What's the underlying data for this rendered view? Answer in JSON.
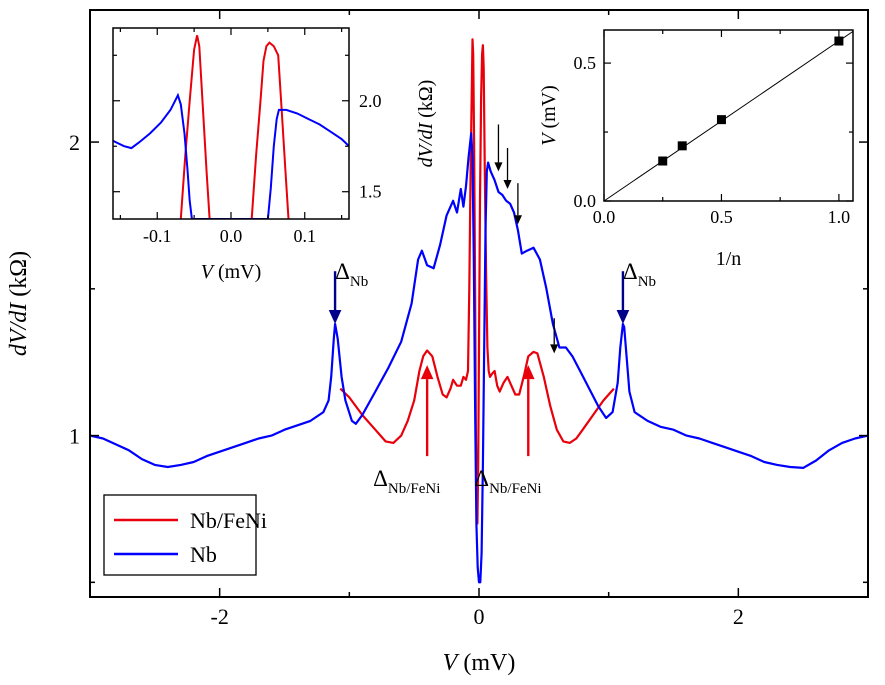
{
  "chart_data": [
    {
      "type": "line",
      "xlabel": "V (mV)",
      "ylabel": "dV/dI (kΩ)",
      "xlim": [
        -3.0,
        3.0
      ],
      "ylim": [
        0.45,
        2.45
      ],
      "xticks": [
        -2,
        0,
        2
      ],
      "xtick_labels": [
        "-2",
        "0",
        "2"
      ],
      "yticks": [
        1,
        2
      ],
      "ytick_labels": [
        "1",
        "2"
      ],
      "legend_placement": "bottom-left",
      "series": [
        {
          "name": "Nb/FeNi",
          "color": "#e8000b",
          "points": [
            [
              -1.07,
              1.16
            ],
            [
              -1.0,
              1.13
            ],
            [
              -0.9,
              1.07
            ],
            [
              -0.8,
              1.02
            ],
            [
              -0.72,
              0.98
            ],
            [
              -0.66,
              0.975
            ],
            [
              -0.6,
              1.0
            ],
            [
              -0.55,
              1.05
            ],
            [
              -0.5,
              1.12
            ],
            [
              -0.46,
              1.22
            ],
            [
              -0.43,
              1.27
            ],
            [
              -0.4,
              1.29
            ],
            [
              -0.36,
              1.27
            ],
            [
              -0.32,
              1.2
            ],
            [
              -0.28,
              1.14
            ],
            [
              -0.25,
              1.13
            ],
            [
              -0.22,
              1.16
            ],
            [
              -0.2,
              1.19
            ],
            [
              -0.17,
              1.17
            ],
            [
              -0.14,
              1.17
            ],
            [
              -0.12,
              1.2
            ],
            [
              -0.1,
              1.19
            ],
            [
              -0.085,
              1.22
            ],
            [
              -0.075,
              1.5
            ],
            [
              -0.065,
              1.9
            ],
            [
              -0.055,
              2.2
            ],
            [
              -0.05,
              2.35
            ],
            [
              -0.045,
              2.3
            ],
            [
              -0.038,
              2.0
            ],
            [
              -0.03,
              1.5
            ],
            [
              -0.024,
              1.0
            ],
            [
              -0.018,
              0.75
            ],
            [
              -0.012,
              0.7
            ],
            [
              -0.006,
              0.9
            ],
            [
              0.0,
              1.3
            ],
            [
              0.008,
              1.8
            ],
            [
              0.016,
              2.15
            ],
            [
              0.024,
              2.3
            ],
            [
              0.03,
              2.33
            ],
            [
              0.036,
              2.25
            ],
            [
              0.045,
              1.9
            ],
            [
              0.055,
              1.55
            ],
            [
              0.065,
              1.3
            ],
            [
              0.075,
              1.22
            ],
            [
              0.085,
              1.2
            ],
            [
              0.1,
              1.21
            ],
            [
              0.12,
              1.22
            ],
            [
              0.14,
              1.17
            ],
            [
              0.16,
              1.15
            ],
            [
              0.19,
              1.18
            ],
            [
              0.22,
              1.2
            ],
            [
              0.25,
              1.17
            ],
            [
              0.28,
              1.14
            ],
            [
              0.31,
              1.14
            ],
            [
              0.35,
              1.21
            ],
            [
              0.38,
              1.27
            ],
            [
              0.42,
              1.285
            ],
            [
              0.45,
              1.28
            ],
            [
              0.5,
              1.2
            ],
            [
              0.55,
              1.1
            ],
            [
              0.6,
              1.02
            ],
            [
              0.65,
              0.98
            ],
            [
              0.7,
              0.975
            ],
            [
              0.75,
              0.99
            ],
            [
              0.8,
              1.02
            ],
            [
              0.88,
              1.07
            ],
            [
              0.96,
              1.12
            ],
            [
              1.04,
              1.16
            ]
          ]
        },
        {
          "name": "Nb",
          "color": "#0000ff",
          "points": [
            [
              -3.0,
              1.0
            ],
            [
              -2.9,
              0.99
            ],
            [
              -2.8,
              0.97
            ],
            [
              -2.7,
              0.95
            ],
            [
              -2.6,
              0.92
            ],
            [
              -2.5,
              0.9
            ],
            [
              -2.4,
              0.893
            ],
            [
              -2.3,
              0.9
            ],
            [
              -2.2,
              0.91
            ],
            [
              -2.1,
              0.93
            ],
            [
              -2.0,
              0.945
            ],
            [
              -1.9,
              0.96
            ],
            [
              -1.8,
              0.975
            ],
            [
              -1.7,
              0.99
            ],
            [
              -1.6,
              1.0
            ],
            [
              -1.5,
              1.02
            ],
            [
              -1.4,
              1.035
            ],
            [
              -1.3,
              1.05
            ],
            [
              -1.2,
              1.08
            ],
            [
              -1.16,
              1.12
            ],
            [
              -1.14,
              1.2
            ],
            [
              -1.12,
              1.33
            ],
            [
              -1.11,
              1.38
            ],
            [
              -1.09,
              1.33
            ],
            [
              -1.06,
              1.2
            ],
            [
              -1.03,
              1.12
            ],
            [
              -0.98,
              1.05
            ],
            [
              -0.95,
              1.04
            ],
            [
              -0.9,
              1.07
            ],
            [
              -0.8,
              1.15
            ],
            [
              -0.7,
              1.23
            ],
            [
              -0.6,
              1.32
            ],
            [
              -0.52,
              1.45
            ],
            [
              -0.47,
              1.6
            ],
            [
              -0.44,
              1.63
            ],
            [
              -0.4,
              1.58
            ],
            [
              -0.35,
              1.57
            ],
            [
              -0.3,
              1.65
            ],
            [
              -0.25,
              1.75
            ],
            [
              -0.2,
              1.8
            ],
            [
              -0.17,
              1.76
            ],
            [
              -0.14,
              1.84
            ],
            [
              -0.12,
              1.78
            ],
            [
              -0.1,
              1.85
            ],
            [
              -0.08,
              1.95
            ],
            [
              -0.06,
              2.03
            ],
            [
              -0.05,
              1.95
            ],
            [
              -0.04,
              1.6
            ],
            [
              -0.03,
              1.1
            ],
            [
              -0.02,
              0.7
            ],
            [
              -0.01,
              0.55
            ],
            [
              0.0,
              0.5
            ],
            [
              0.01,
              0.5
            ],
            [
              0.02,
              0.6
            ],
            [
              0.03,
              0.9
            ],
            [
              0.04,
              1.3
            ],
            [
              0.05,
              1.7
            ],
            [
              0.06,
              1.9
            ],
            [
              0.07,
              1.93
            ],
            [
              0.09,
              1.9
            ],
            [
              0.12,
              1.87
            ],
            [
              0.15,
              1.83
            ],
            [
              0.18,
              1.82
            ],
            [
              0.21,
              1.8
            ],
            [
              0.24,
              1.79
            ],
            [
              0.27,
              1.76
            ],
            [
              0.3,
              1.7
            ],
            [
              0.33,
              1.62
            ],
            [
              0.37,
              1.63
            ],
            [
              0.42,
              1.64
            ],
            [
              0.47,
              1.6
            ],
            [
              0.52,
              1.5
            ],
            [
              0.57,
              1.38
            ],
            [
              0.62,
              1.3
            ],
            [
              0.67,
              1.3
            ],
            [
              0.72,
              1.27
            ],
            [
              0.78,
              1.22
            ],
            [
              0.85,
              1.16
            ],
            [
              0.92,
              1.1
            ],
            [
              0.98,
              1.06
            ],
            [
              1.03,
              1.08
            ],
            [
              1.07,
              1.18
            ],
            [
              1.09,
              1.3
            ],
            [
              1.11,
              1.38
            ],
            [
              1.12,
              1.37
            ],
            [
              1.14,
              1.26
            ],
            [
              1.16,
              1.15
            ],
            [
              1.2,
              1.08
            ],
            [
              1.3,
              1.05
            ],
            [
              1.4,
              1.03
            ],
            [
              1.5,
              1.02
            ],
            [
              1.6,
              1.0
            ],
            [
              1.7,
              0.99
            ],
            [
              1.8,
              0.975
            ],
            [
              1.9,
              0.96
            ],
            [
              2.0,
              0.945
            ],
            [
              2.1,
              0.93
            ],
            [
              2.2,
              0.91
            ],
            [
              2.3,
              0.9
            ],
            [
              2.4,
              0.893
            ],
            [
              2.5,
              0.89
            ],
            [
              2.6,
              0.915
            ],
            [
              2.7,
              0.95
            ],
            [
              2.8,
              0.975
            ],
            [
              2.9,
              0.99
            ],
            [
              3.0,
              1.0
            ]
          ]
        }
      ],
      "annotations": [
        {
          "text": "Δ",
          "sub": "Nb",
          "color": "#00008b",
          "x": -1.11,
          "y_from": 1.56,
          "y_to": 1.38
        },
        {
          "text": "Δ",
          "sub": "Nb",
          "color": "#00008b",
          "x": 1.11,
          "y_from": 1.56,
          "y_to": 1.38
        },
        {
          "text": "Δ",
          "sub": "Nb/FeNi",
          "color": "#e8000b",
          "x": -0.4,
          "y_from": 0.93,
          "y_to": 1.24
        },
        {
          "text": "Δ",
          "sub": "Nb/FeNi",
          "color": "#e8000b",
          "x": 0.38,
          "y_from": 0.93,
          "y_to": 1.24
        }
      ],
      "peak_arrows": [
        {
          "x": 0.15,
          "y_from": 2.06,
          "y_to": 1.9,
          "color": "#000000"
        },
        {
          "x": 0.22,
          "y_from": 1.98,
          "y_to": 1.84,
          "color": "#000000"
        },
        {
          "x": 0.3,
          "y_from": 1.86,
          "y_to": 1.72,
          "color": "#000000"
        },
        {
          "x": 0.58,
          "y_from": 1.4,
          "y_to": 1.28,
          "color": "#000000"
        }
      ]
    },
    {
      "type": "line",
      "placement": "inset-top-left",
      "xlabel": "V (mV)",
      "ylabel": "dV/dI (kΩ)",
      "xlim": [
        -0.16,
        0.16
      ],
      "ylim": [
        1.35,
        2.4
      ],
      "xticks": [
        -0.1,
        0.0,
        0.1
      ],
      "xtick_labels": [
        "-0.1",
        "0.0",
        "0.1"
      ],
      "yticks": [
        1.5,
        2.0
      ],
      "ytick_labels": [
        "1.5",
        "2.0"
      ],
      "y_axis_side": "right",
      "series": [
        {
          "name": "Nb/FeNi",
          "color": "#e8000b",
          "points": [
            [
              -0.068,
              1.35
            ],
            [
              -0.062,
              1.7
            ],
            [
              -0.056,
              2.0
            ],
            [
              -0.05,
              2.28
            ],
            [
              -0.046,
              2.36
            ],
            [
              -0.043,
              2.3
            ],
            [
              -0.038,
              1.95
            ],
            [
              -0.033,
              1.6
            ],
            [
              -0.029,
              1.35
            ],
            [
              0.028,
              1.35
            ],
            [
              0.034,
              1.7
            ],
            [
              0.04,
              2.0
            ],
            [
              0.044,
              2.22
            ],
            [
              0.048,
              2.3
            ],
            [
              0.052,
              2.32
            ],
            [
              0.058,
              2.3
            ],
            [
              0.064,
              2.25
            ],
            [
              0.068,
              2.0
            ],
            [
              0.074,
              1.6
            ],
            [
              0.078,
              1.35
            ]
          ]
        },
        {
          "name": "Nb",
          "color": "#0000ff",
          "points": [
            [
              -0.16,
              1.78
            ],
            [
              -0.155,
              1.77
            ],
            [
              -0.145,
              1.75
            ],
            [
              -0.135,
              1.74
            ],
            [
              -0.125,
              1.77
            ],
            [
              -0.11,
              1.82
            ],
            [
              -0.095,
              1.88
            ],
            [
              -0.082,
              1.95
            ],
            [
              -0.072,
              2.03
            ],
            [
              -0.068,
              1.98
            ],
            [
              -0.063,
              1.82
            ],
            [
              -0.059,
              1.62
            ],
            [
              -0.056,
              1.45
            ],
            [
              -0.053,
              1.35
            ],
            [
              0.05,
              1.35
            ],
            [
              0.054,
              1.52
            ],
            [
              0.058,
              1.75
            ],
            [
              0.062,
              1.9
            ],
            [
              0.065,
              1.95
            ],
            [
              0.075,
              1.95
            ],
            [
              0.09,
              1.93
            ],
            [
              0.105,
              1.9
            ],
            [
              0.12,
              1.87
            ],
            [
              0.135,
              1.83
            ],
            [
              0.15,
              1.79
            ],
            [
              0.16,
              1.75
            ]
          ]
        }
      ]
    },
    {
      "type": "scatter",
      "placement": "inset-top-right",
      "xlabel": "1/n",
      "ylabel": "V (mV)",
      "xlim": [
        0.0,
        1.06
      ],
      "ylim": [
        0.0,
        0.62
      ],
      "xticks": [
        0.0,
        0.5,
        1.0
      ],
      "xtick_labels": [
        "0.0",
        "0.5",
        "1.0"
      ],
      "yticks": [
        0.0,
        0.5
      ],
      "ytick_labels": [
        "0.0",
        "0.5"
      ],
      "points": [
        [
          0.25,
          0.145
        ],
        [
          0.333,
          0.2
        ],
        [
          0.5,
          0.295
        ],
        [
          1.0,
          0.58
        ]
      ],
      "fit_line": [
        [
          0.0,
          0.0
        ],
        [
          1.06,
          0.615
        ]
      ]
    }
  ],
  "legend": {
    "items": [
      {
        "label": "Nb/FeNi",
        "color": "#e8000b"
      },
      {
        "label": "Nb",
        "color": "#0000ff"
      }
    ]
  }
}
